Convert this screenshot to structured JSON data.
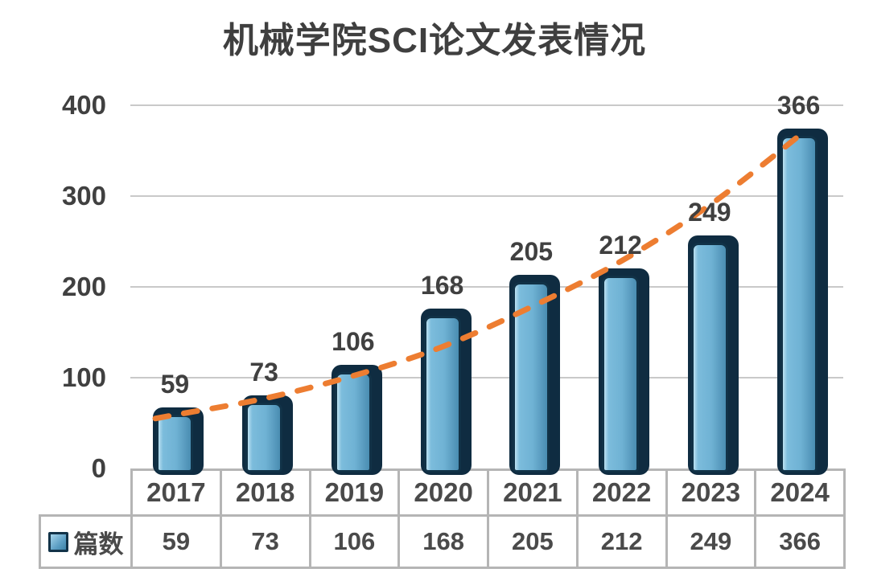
{
  "chart_data": {
    "type": "bar",
    "title": "机械学院SCI论文发表情况",
    "categories": [
      "2017",
      "2018",
      "2019",
      "2020",
      "2021",
      "2022",
      "2023",
      "2024"
    ],
    "series": [
      {
        "name": "篇数",
        "type": "bar",
        "values": [
          59,
          73,
          106,
          168,
          205,
          212,
          249,
          366
        ]
      }
    ],
    "trendline": {
      "style": "dashed",
      "color": "#ED7D31",
      "fitted_values": [
        59,
        77,
        102,
        134,
        178,
        228,
        290,
        366
      ]
    },
    "yticks": [
      0,
      100,
      200,
      300,
      400
    ],
    "ylim": [
      0,
      400
    ],
    "xlabel": "",
    "ylabel": "",
    "grid": true,
    "data_labels_shown": true,
    "legend_position": "table-bottom-left"
  },
  "legend": {
    "label": "篇数"
  },
  "colors": {
    "bar_gradient_light": "#bce1f1",
    "bar_gradient_mid": "#6fb2d4",
    "bar_gradient_dark": "#4a8db1",
    "bar_border": "#113247",
    "bar_shadow": "#0f2c41",
    "trend_orange": "#ED7D31",
    "gridline_gray": "#c9c9c9",
    "table_border_gray": "#b5b5b5",
    "text_dark": "#404040"
  }
}
